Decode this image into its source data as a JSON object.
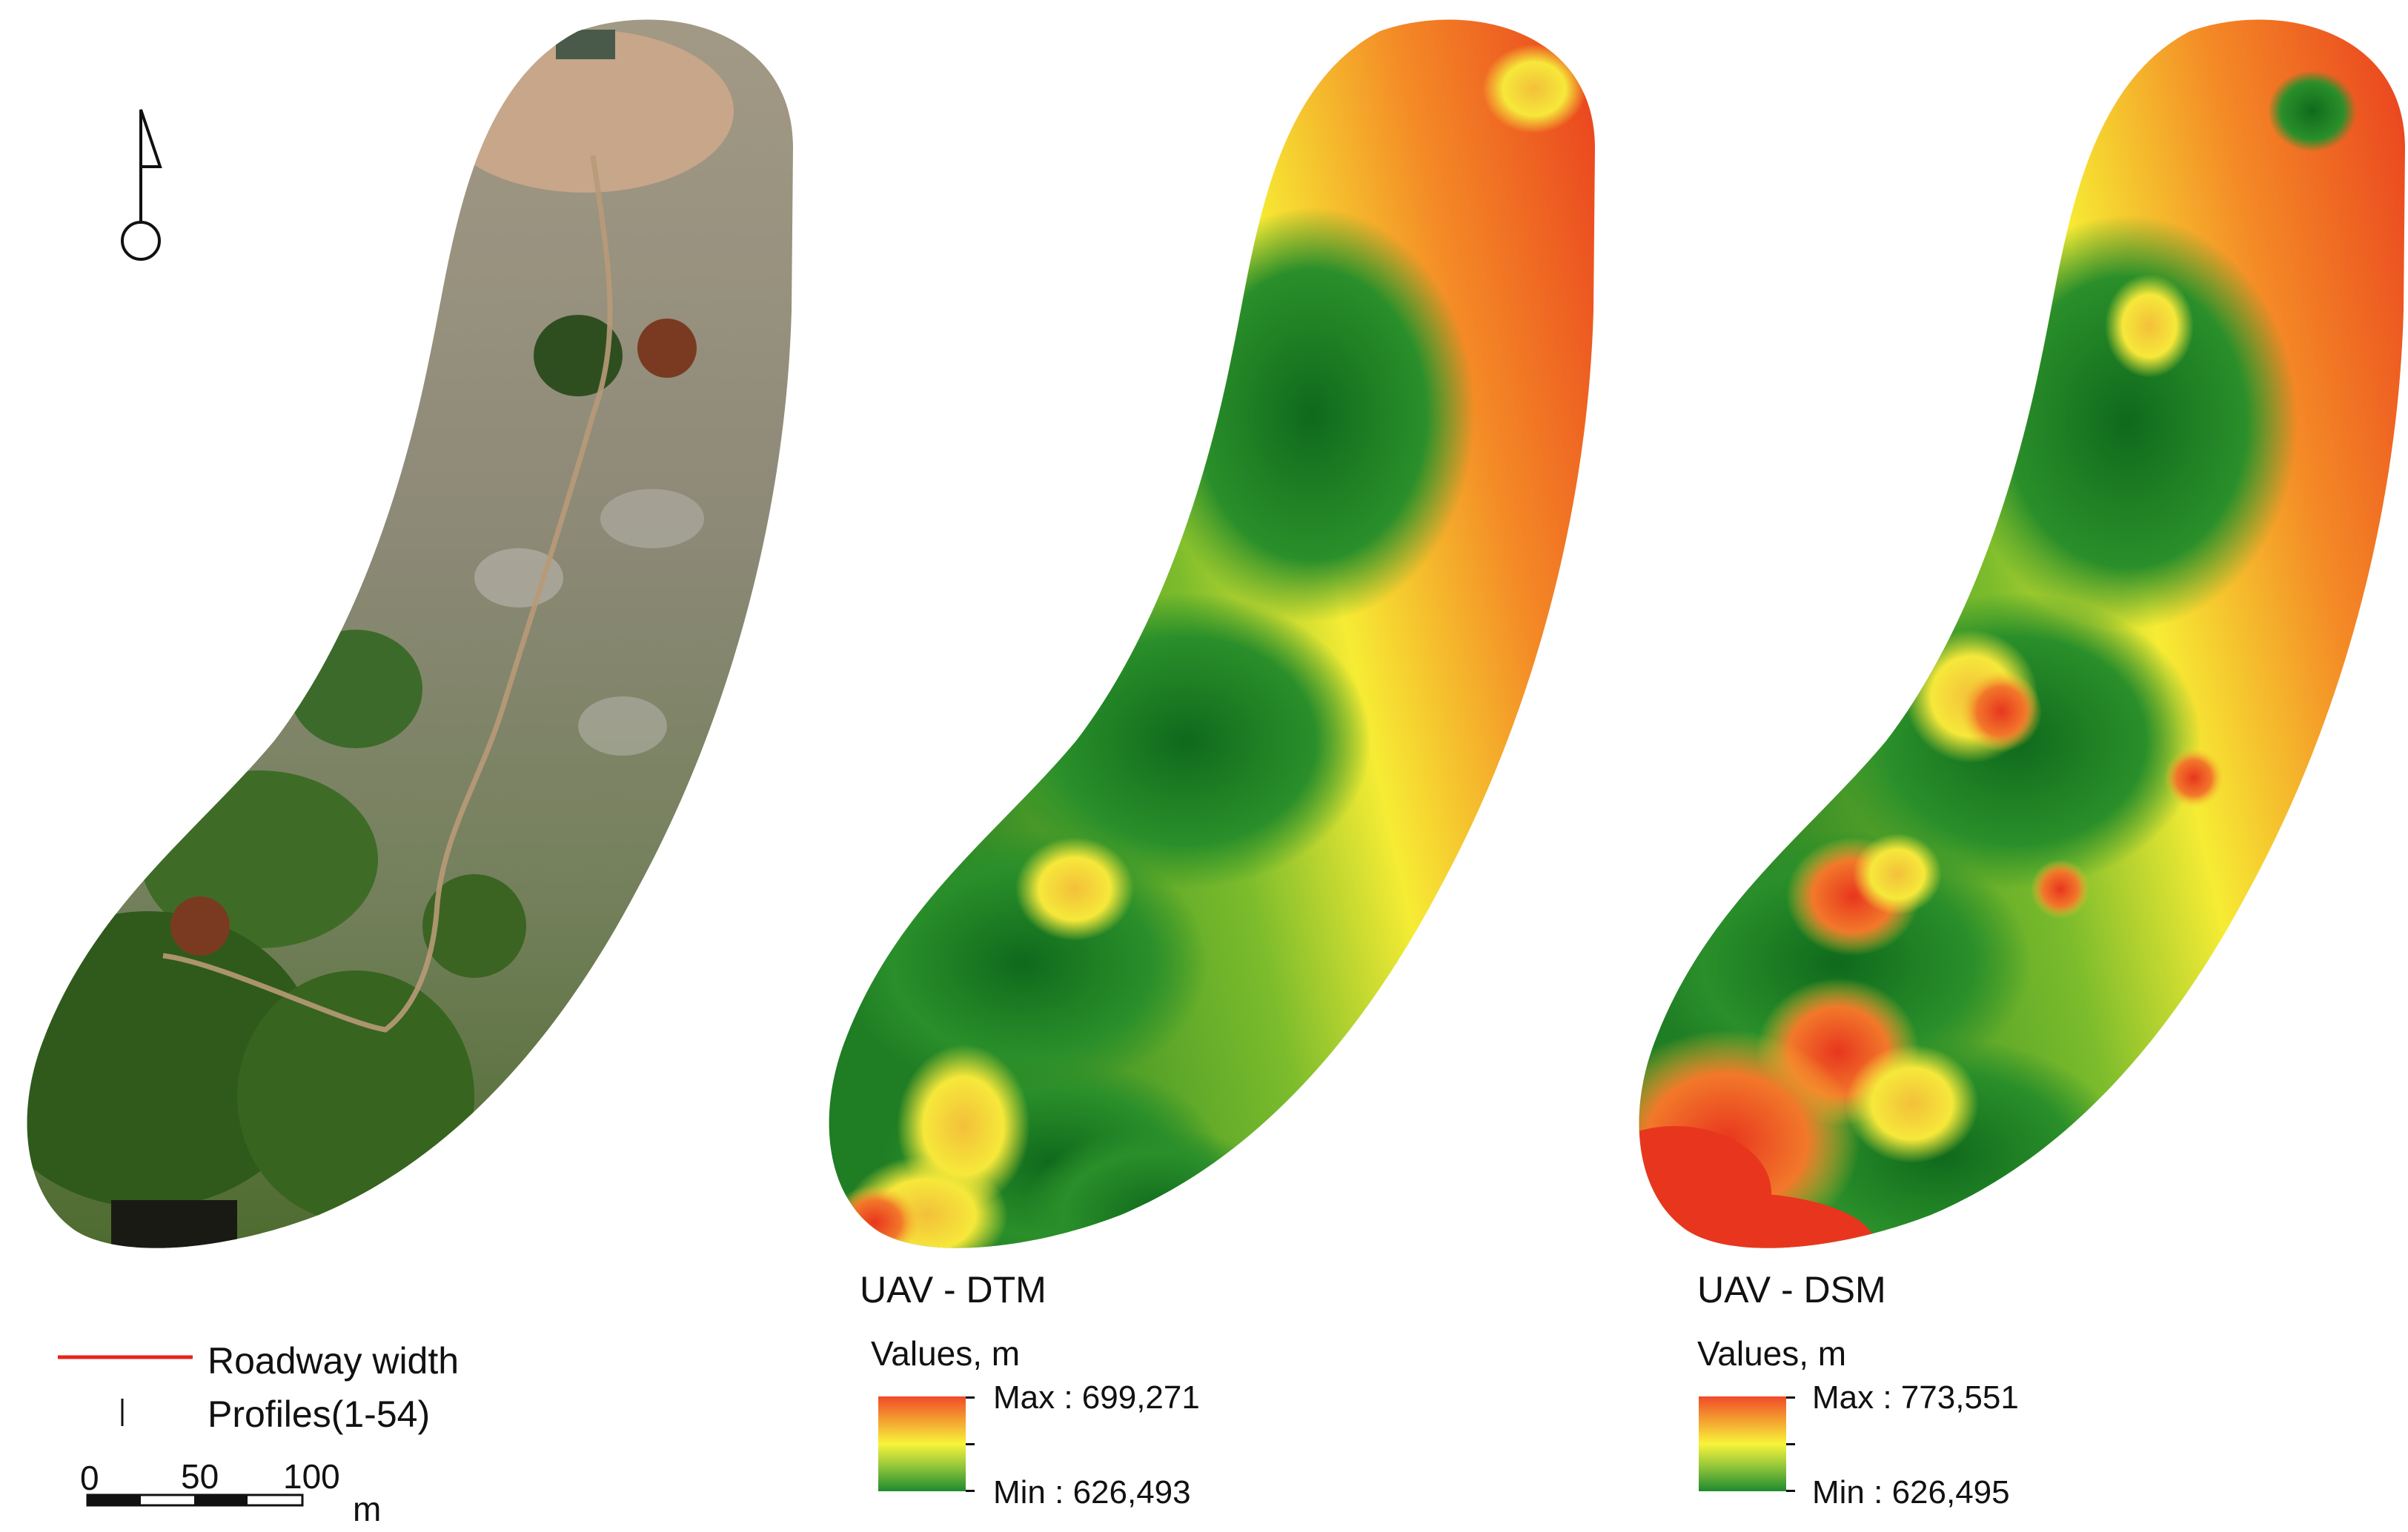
{
  "panels": {
    "dtm": {
      "title": "UAV - DTM",
      "units": "Values, m",
      "max_label": "Max : 699,271",
      "min_label": "Min : 626,493"
    },
    "dsm": {
      "title": "UAV - DSM",
      "units": "Values, m",
      "max_label": "Max : 773,551",
      "min_label": "Min : 626,495"
    }
  },
  "legend": {
    "roadway": "Roadway width",
    "profiles": "Profiles(1-54)"
  },
  "scalebar": {
    "tick_0": "0",
    "tick_50": "50",
    "tick_100": "100",
    "unit": "m"
  },
  "colors": {
    "ramp_high": "#f04a2a",
    "ramp_mid": "#f8f43a",
    "ramp_low": "#1f8a30",
    "roadway_line": "#e8231c"
  }
}
